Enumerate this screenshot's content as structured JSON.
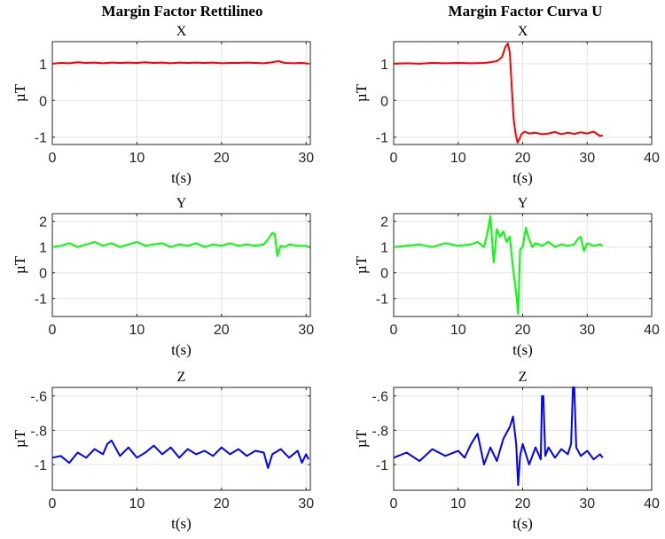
{
  "figure": {
    "left_title": "Margin Factor Rettilineo",
    "right_title": "Margin Factor Curva U"
  },
  "colors": {
    "x": "#ff0000",
    "y": "#00ff00",
    "z": "#0000ff",
    "grid": "#e3e3e3",
    "axis": "#262626"
  },
  "chart_data": [
    {
      "type": "line",
      "title": "X",
      "xlabel": "t(s)",
      "ylabel": "µT",
      "xlim": [
        0,
        30.5
      ],
      "ylim": [
        -1.2,
        1.6
      ],
      "xticks": [
        0,
        10,
        20,
        30
      ],
      "yticks": [
        -1,
        0,
        1
      ],
      "grid": true,
      "color": "#ff0000",
      "series": [
        {
          "x": [
            0,
            1,
            2,
            3,
            4,
            5,
            6,
            7,
            8,
            9,
            10,
            11,
            12,
            13,
            14,
            15,
            16,
            17,
            18,
            19,
            20,
            21,
            22,
            23,
            24,
            25,
            26,
            26.7,
            27.5,
            28.5,
            29.5,
            30.3
          ],
          "y": [
            1.0,
            1.02,
            1.01,
            1.04,
            1.02,
            1.03,
            1.01,
            1.03,
            1.02,
            1.03,
            1.02,
            1.04,
            1.02,
            1.03,
            1.01,
            1.03,
            1.02,
            1.03,
            1.02,
            1.03,
            1.01,
            1.02,
            1.02,
            1.03,
            1.02,
            1.01,
            1.04,
            1.07,
            1.02,
            1.01,
            1.02,
            1.0
          ]
        }
      ]
    },
    {
      "type": "line",
      "title": "X",
      "xlabel": "t(s)",
      "ylabel": "µT",
      "xlim": [
        0,
        40
      ],
      "ylim": [
        -1.2,
        1.6
      ],
      "xticks": [
        0,
        10,
        20,
        30,
        40
      ],
      "yticks": [
        -1,
        0,
        1
      ],
      "grid": true,
      "color": "#ff0000",
      "series": [
        {
          "x": [
            0,
            2,
            4,
            6,
            8,
            10,
            12,
            14,
            15,
            16,
            16.8,
            17.3,
            17.7,
            18,
            18.3,
            18.6,
            18.9,
            19.2,
            19.5,
            19.8,
            20.3,
            21,
            22,
            23,
            24,
            25,
            26,
            27,
            28,
            29,
            30,
            31,
            32,
            32.4
          ],
          "y": [
            1.0,
            1.01,
            1.0,
            1.02,
            1.01,
            1.02,
            1.01,
            1.02,
            1.04,
            1.07,
            1.18,
            1.45,
            1.55,
            1.3,
            0.4,
            -0.5,
            -0.9,
            -1.15,
            -1.05,
            -0.92,
            -0.85,
            -0.9,
            -0.88,
            -0.92,
            -0.9,
            -0.86,
            -0.92,
            -0.88,
            -0.91,
            -0.87,
            -0.9,
            -0.85,
            -0.97,
            -0.95
          ]
        }
      ]
    },
    {
      "type": "line",
      "title": "Y",
      "xlabel": "t(s)",
      "ylabel": "µT",
      "xlim": [
        0,
        30.5
      ],
      "ylim": [
        -1.7,
        2.3
      ],
      "xticks": [
        0,
        10,
        20,
        30
      ],
      "yticks": [
        -1,
        0,
        1,
        2
      ],
      "grid": true,
      "color": "#00ff00",
      "series": [
        {
          "x": [
            0,
            1,
            2,
            3,
            4,
            5,
            6,
            7,
            8,
            9,
            10,
            11,
            12,
            13,
            14,
            15,
            16,
            17,
            18,
            19,
            20,
            21,
            22,
            23,
            24,
            25,
            25.5,
            26,
            26.3,
            26.6,
            27,
            27.5,
            28,
            29,
            30,
            30.3
          ],
          "y": [
            1.0,
            1.05,
            1.15,
            1.0,
            1.1,
            1.2,
            1.05,
            1.15,
            1.0,
            1.1,
            1.2,
            1.05,
            1.1,
            1.15,
            1.0,
            1.1,
            1.05,
            1.15,
            1.0,
            1.1,
            1.05,
            1.15,
            1.05,
            1.1,
            1.05,
            1.1,
            1.3,
            1.55,
            1.5,
            0.65,
            1.05,
            1.0,
            1.1,
            1.05,
            1.05,
            1.0
          ]
        }
      ]
    },
    {
      "type": "line",
      "title": "Y",
      "xlabel": "t(s)",
      "ylabel": "µT",
      "xlim": [
        0,
        40
      ],
      "ylim": [
        -1.7,
        2.3
      ],
      "xticks": [
        0,
        10,
        20,
        30,
        40
      ],
      "yticks": [
        -1,
        0,
        1,
        2
      ],
      "grid": true,
      "color": "#00ff00",
      "series": [
        {
          "x": [
            0,
            2,
            4,
            6,
            8,
            10,
            12,
            13,
            14,
            14.5,
            15,
            15.5,
            16,
            16.5,
            17,
            17.5,
            18,
            18.5,
            19,
            19.3,
            19.6,
            20,
            20.5,
            21,
            21.5,
            22,
            23,
            24,
            25,
            26,
            27,
            28,
            28.5,
            29,
            29.5,
            30,
            31,
            32,
            32.4
          ],
          "y": [
            1.0,
            1.05,
            1.1,
            1.0,
            1.15,
            1.05,
            1.1,
            1.2,
            1.0,
            1.5,
            2.2,
            0.4,
            1.7,
            1.4,
            1.6,
            1.2,
            1.4,
            0.2,
            -0.8,
            -1.6,
            0.9,
            1.0,
            1.75,
            1.3,
            1.0,
            1.15,
            1.05,
            1.2,
            1.0,
            1.1,
            1.05,
            1.1,
            1.3,
            1.4,
            0.85,
            1.15,
            1.05,
            1.1,
            1.05
          ]
        }
      ]
    },
    {
      "type": "line",
      "title": "Z",
      "xlabel": "t(s)",
      "ylabel": "µT",
      "xlim": [
        0,
        30.5
      ],
      "ylim": [
        -1.15,
        -0.55
      ],
      "xticks": [
        0,
        10,
        20,
        30
      ],
      "yticks": [
        -1,
        -0.8,
        -0.6
      ],
      "grid": true,
      "color": "#0000ff",
      "series": [
        {
          "x": [
            0,
            1,
            2,
            3,
            4,
            5,
            6,
            6.5,
            7,
            8,
            9,
            10,
            11,
            12,
            13,
            14,
            15,
            16,
            17,
            18,
            19,
            20,
            21,
            22,
            23,
            24,
            25,
            25.5,
            26,
            27,
            28,
            29,
            29.5,
            30,
            30.3
          ],
          "y": [
            -0.96,
            -0.95,
            -0.99,
            -0.93,
            -0.96,
            -0.91,
            -0.94,
            -0.88,
            -0.86,
            -0.95,
            -0.9,
            -0.96,
            -0.93,
            -0.89,
            -0.94,
            -0.9,
            -0.96,
            -0.91,
            -0.94,
            -0.92,
            -0.95,
            -0.9,
            -0.94,
            -0.91,
            -0.95,
            -0.92,
            -0.93,
            -1.02,
            -0.94,
            -0.91,
            -0.96,
            -0.92,
            -0.99,
            -0.94,
            -0.97
          ]
        }
      ]
    },
    {
      "type": "line",
      "title": "Z",
      "xlabel": "t(s)",
      "ylabel": "µT",
      "xlim": [
        0,
        40
      ],
      "ylim": [
        -1.15,
        -0.55
      ],
      "xticks": [
        0,
        10,
        20,
        30,
        40
      ],
      "yticks": [
        -1,
        -0.8,
        -0.6
      ],
      "grid": true,
      "color": "#0000ff",
      "series": [
        {
          "x": [
            0,
            2,
            4,
            6,
            8,
            10,
            11,
            12,
            13,
            14,
            15,
            16,
            17,
            18,
            18.5,
            19,
            19.3,
            19.6,
            20,
            21,
            22,
            22.8,
            23,
            23.2,
            23.5,
            24,
            25,
            26,
            27,
            27.5,
            27.8,
            28,
            28.3,
            29,
            30,
            31,
            32,
            32.4
          ],
          "y": [
            -0.96,
            -0.93,
            -0.98,
            -0.91,
            -0.95,
            -0.92,
            -0.96,
            -0.88,
            -0.82,
            -1.0,
            -0.9,
            -0.98,
            -0.85,
            -0.78,
            -0.72,
            -0.88,
            -1.12,
            -0.95,
            -0.88,
            -1.0,
            -0.9,
            -0.97,
            -0.6,
            -0.6,
            -0.95,
            -0.9,
            -0.96,
            -0.91,
            -0.94,
            -0.88,
            -0.55,
            -0.55,
            -0.9,
            -0.95,
            -0.92,
            -0.97,
            -0.94,
            -0.96
          ]
        }
      ]
    }
  ]
}
